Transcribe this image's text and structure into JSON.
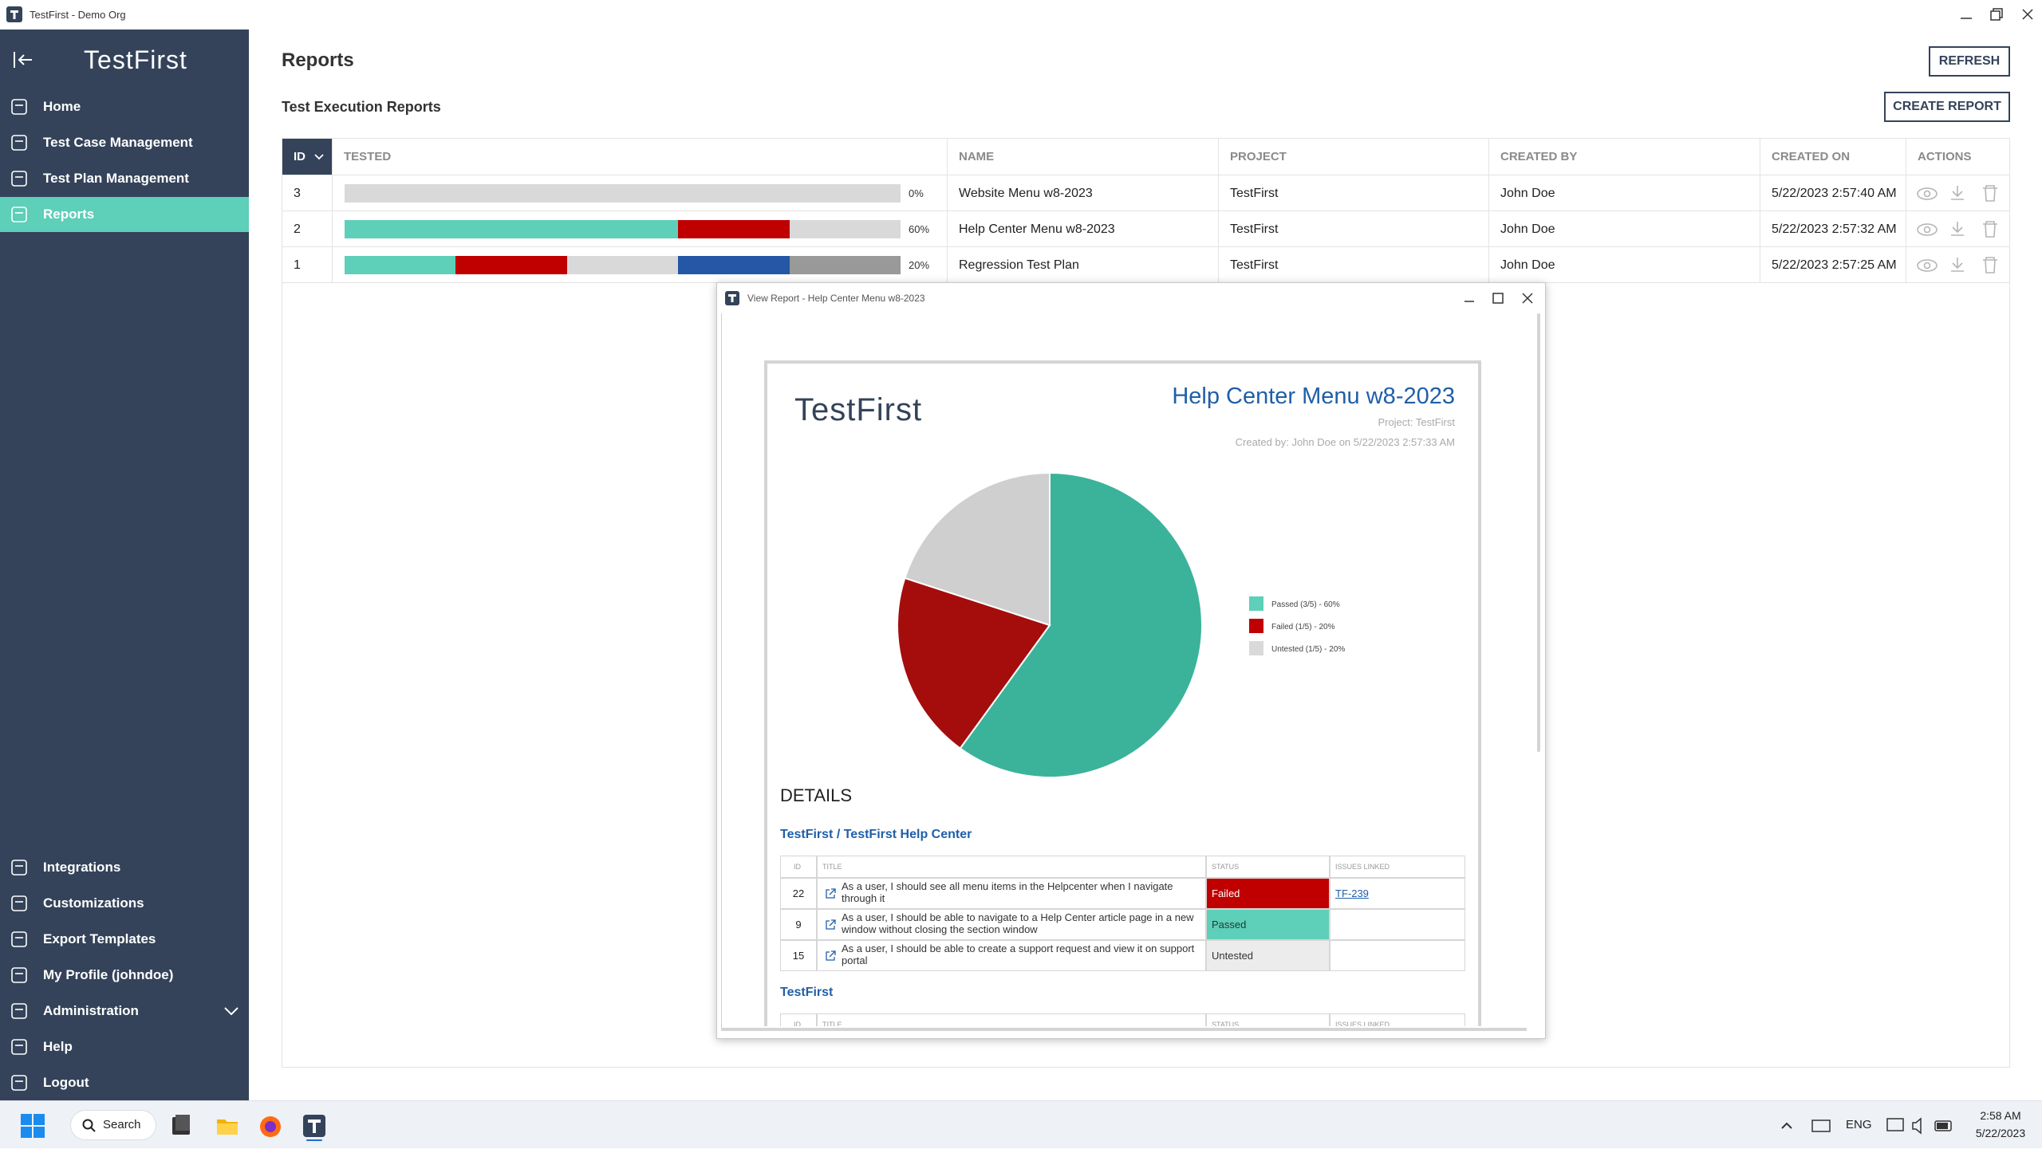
{
  "window": {
    "title": "TestFirst - Demo Org"
  },
  "sidebar": {
    "logo": "TestFirst",
    "active_index": 3,
    "nav_top": [
      "Home",
      "Test Case Management",
      "Test Plan Management",
      "Reports"
    ],
    "nav_bottom": [
      "Integrations",
      "Customizations",
      "Export Templates",
      "My Profile (johndoe)",
      "Administration",
      "Help",
      "Logout"
    ]
  },
  "page": {
    "title": "Reports",
    "refresh": "REFRESH",
    "subtitle": "Test Execution Reports",
    "create": "CREATE REPORT"
  },
  "table": {
    "columns": [
      "ID",
      "TESTED",
      "NAME",
      "PROJECT",
      "CREATED BY",
      "CREATED ON",
      "ACTIONS"
    ],
    "rows": [
      {
        "id": 3,
        "progress": [
          {
            "value": 100,
            "color": "#d9d9d9"
          }
        ],
        "percent": "0%",
        "name": "Website Menu w8-2023",
        "project": "TestFirst",
        "created_by": "John Doe",
        "created_on": "5/22/2023 2:57:40 AM"
      },
      {
        "id": 2,
        "progress": [
          {
            "value": 60,
            "color": "#5ecfb8"
          },
          {
            "value": 20,
            "color": "#c00000"
          },
          {
            "value": 20,
            "color": "#d9d9d9"
          }
        ],
        "percent": "60%",
        "name": "Help Center Menu w8-2023",
        "project": "TestFirst",
        "created_by": "John Doe",
        "created_on": "5/22/2023 2:57:32 AM"
      },
      {
        "id": 1,
        "progress": [
          {
            "value": 20,
            "color": "#5ecfb8"
          },
          {
            "value": 20,
            "color": "#c00000"
          },
          {
            "value": 20,
            "color": "#d9d9d9"
          },
          {
            "value": 20,
            "color": "#2457a6"
          },
          {
            "value": 20,
            "color": "#999999"
          }
        ],
        "percent": "20%",
        "name": "Regression Test Plan",
        "project": "TestFirst",
        "created_by": "John Doe",
        "created_on": "5/22/2023 2:57:25 AM"
      }
    ]
  },
  "dialog": {
    "title": "View Report - Help Center Menu w8-2023",
    "report": {
      "logo": "TestFirst",
      "title": "Help Center Menu w8-2023",
      "project": "Project: TestFirst",
      "created": "Created by: John Doe on 5/22/2023 2:57:33 AM",
      "details": "DETAILS",
      "sections": [
        {
          "title": "TestFirst / TestFirst Help Center",
          "columns": [
            "ID",
            "TITLE",
            "STATUS",
            "ISSUES LINKED"
          ],
          "rows": [
            {
              "id": "22",
              "title": "As a user, I should see all menu items in the Helpcenter when I navigate through it",
              "status": "Failed",
              "status_color": "#c00000",
              "status_text_color": "#ffffff",
              "issue": "TF-239"
            },
            {
              "id": "9",
              "title": "As a user, I should be able to navigate to a Help Center article page in a new window without closing the section window",
              "status": "Passed",
              "status_color": "#5ecfb8",
              "status_text_color": "#1f3a33",
              "issue": null
            },
            {
              "id": "15",
              "title": "As a user, I should be able to create a support request and view it on support portal",
              "status": "Untested",
              "status_color": "#ececec",
              "status_text_color": "#333333",
              "issue": null
            }
          ]
        },
        {
          "title": "TestFirst",
          "columns": [
            "ID",
            "TITLE",
            "STATUS",
            "ISSUES LINKED"
          ],
          "rows": []
        }
      ]
    }
  },
  "chart_data": {
    "type": "pie",
    "categories": [
      "Passed (3/5) - 60%",
      "Failed (1/5) - 20%",
      "Untested (1/5) - 20%"
    ],
    "values": [
      60,
      20,
      20
    ],
    "colors": [
      "#3bb39a",
      "#a50d0d",
      "#cfcfcf"
    ],
    "legend_colors": [
      "#5ecfb8",
      "#c00000",
      "#d9d9d9"
    ]
  },
  "taskbar": {
    "search": "Search",
    "lang": "ENG",
    "time": "2:58 AM",
    "date": "5/22/2023"
  }
}
